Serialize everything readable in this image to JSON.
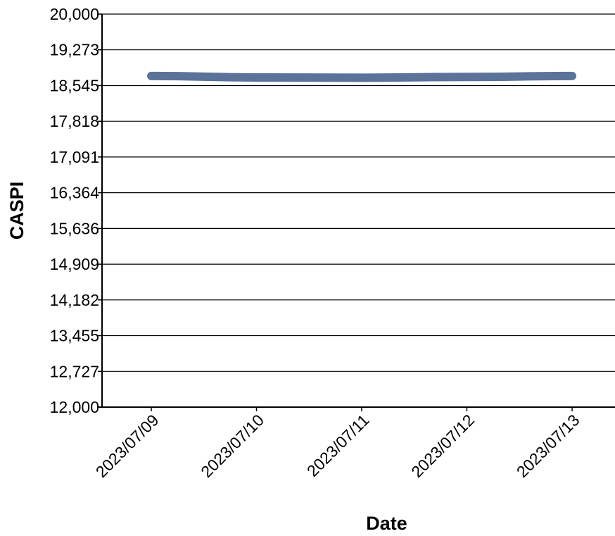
{
  "chart_data": {
    "type": "line",
    "title": "",
    "xlabel": "Date",
    "ylabel": "CASPI",
    "categories": [
      "2023/07/09",
      "2023/07/10",
      "2023/07/11",
      "2023/07/12",
      "2023/07/13"
    ],
    "series": [
      {
        "values": [
          18740,
          18710,
          18705,
          18720,
          18740
        ],
        "color": "#5b7398"
      }
    ],
    "ylim": [
      12000,
      20000
    ],
    "y_ticks": [
      "12,000",
      "12,727",
      "13,455",
      "14,182",
      "14,909",
      "15,636",
      "16,364",
      "17,091",
      "17,818",
      "18,545",
      "19,273",
      "20,000"
    ],
    "grid": "horizontal",
    "legend": "none"
  }
}
